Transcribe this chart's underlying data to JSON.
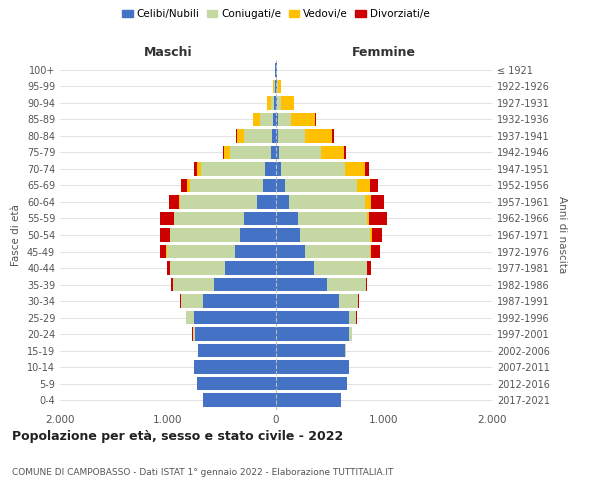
{
  "age_groups": [
    "0-4",
    "5-9",
    "10-14",
    "15-19",
    "20-24",
    "25-29",
    "30-34",
    "35-39",
    "40-44",
    "45-49",
    "50-54",
    "55-59",
    "60-64",
    "65-69",
    "70-74",
    "75-79",
    "80-84",
    "85-89",
    "90-94",
    "95-99",
    "100+"
  ],
  "birth_years": [
    "2017-2021",
    "2012-2016",
    "2007-2011",
    "2002-2006",
    "1997-2001",
    "1992-1996",
    "1987-1991",
    "1982-1986",
    "1977-1981",
    "1972-1976",
    "1967-1971",
    "1962-1966",
    "1957-1961",
    "1952-1956",
    "1947-1951",
    "1942-1946",
    "1937-1941",
    "1932-1936",
    "1927-1931",
    "1922-1926",
    "≤ 1921"
  ],
  "maschi": {
    "celibi": [
      680,
      730,
      760,
      720,
      750,
      760,
      680,
      570,
      470,
      380,
      330,
      300,
      180,
      120,
      100,
      50,
      40,
      30,
      20,
      10,
      5
    ],
    "coniugati": [
      0,
      0,
      0,
      5,
      20,
      70,
      200,
      380,
      510,
      630,
      650,
      640,
      710,
      680,
      590,
      380,
      260,
      120,
      30,
      5,
      2
    ],
    "vedovi": [
      0,
      0,
      0,
      0,
      2,
      2,
      2,
      2,
      2,
      5,
      5,
      5,
      10,
      20,
      40,
      50,
      60,
      60,
      30,
      10,
      2
    ],
    "divorziati": [
      0,
      0,
      0,
      0,
      2,
      5,
      10,
      20,
      30,
      60,
      90,
      130,
      90,
      60,
      30,
      15,
      15,
      5,
      0,
      0,
      0
    ]
  },
  "femmine": {
    "nubili": [
      600,
      660,
      680,
      640,
      680,
      680,
      580,
      470,
      350,
      270,
      220,
      200,
      120,
      80,
      50,
      30,
      20,
      15,
      10,
      10,
      5
    ],
    "coniugate": [
      0,
      0,
      0,
      5,
      20,
      60,
      180,
      360,
      490,
      600,
      650,
      640,
      700,
      670,
      590,
      390,
      250,
      120,
      40,
      5,
      2
    ],
    "vedove": [
      0,
      0,
      0,
      0,
      2,
      2,
      2,
      2,
      5,
      10,
      15,
      25,
      60,
      120,
      180,
      210,
      250,
      230,
      120,
      30,
      5
    ],
    "divorziate": [
      0,
      0,
      0,
      0,
      2,
      5,
      10,
      15,
      30,
      80,
      100,
      160,
      120,
      70,
      40,
      20,
      20,
      5,
      0,
      0,
      0
    ]
  },
  "colors": {
    "celibi": "#4472c4",
    "coniugati": "#c5d8a4",
    "vedovi": "#ffc000",
    "divorziati": "#cc0000"
  },
  "title": "Popolazione per età, sesso e stato civile - 2022",
  "subtitle": "COMUNE DI CAMPOBASSO - Dati ISTAT 1° gennaio 2022 - Elaborazione TUTTITALIA.IT",
  "xlabel_maschi": "Maschi",
  "xlabel_femmine": "Femmine",
  "ylabel_left": "Fasce di età",
  "ylabel_right": "Anni di nascita",
  "xlim": 2000,
  "background_color": "#ffffff",
  "grid_color": "#dddddd"
}
